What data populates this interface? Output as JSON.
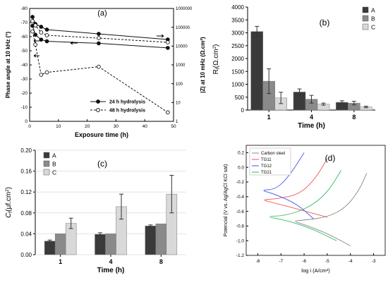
{
  "chart_data": [
    {
      "panel": "(a)",
      "type": "line",
      "xlabel": "Exposure time (h)",
      "ylabel_left": "Phase angle at 10 kHz (°)",
      "ylabel_right": "|Z| at 10 mHz (Ω.cm²)",
      "xlim": [
        0,
        50
      ],
      "ylim_left": [
        -80,
        0
      ],
      "ylim_right": [
        1,
        1000000
      ],
      "yscale_right": "log",
      "x_ticks": [
        "0",
        "10",
        "20",
        "30",
        "40",
        "50"
      ],
      "y_left_ticks": [
        "-80",
        "-70",
        "-60",
        "-50",
        "-40",
        "-30",
        "-20",
        "-10",
        "0"
      ],
      "y_right_ticks": [
        "1",
        "10",
        "100",
        "1000",
        "10000",
        "100000",
        "1000000"
      ],
      "legend_position": "bottom-right",
      "series": [
        {
          "name": "24 h hydrolysis",
          "axis": "left",
          "style": "solid",
          "marker": "filled-circle",
          "x": [
            1,
            2,
            4,
            6,
            24,
            48
          ],
          "y": [
            -74,
            -69,
            -67,
            -65,
            -62,
            -58
          ]
        },
        {
          "name": "24 h hydrolysis",
          "axis": "right",
          "style": "solid",
          "marker": "filled-circle",
          "x": [
            1,
            2,
            4,
            6,
            24,
            48
          ],
          "y": [
            120000,
            40000,
            22000,
            18000,
            14000,
            8000
          ]
        },
        {
          "name": "48 h hydrolysis",
          "axis": "left",
          "style": "dashed",
          "marker": "open-circle",
          "x": [
            1,
            2,
            4,
            6,
            24,
            48
          ],
          "y": [
            -71,
            -68,
            -63,
            -61,
            -59,
            -56
          ]
        },
        {
          "name": "48 h hydrolysis",
          "axis": "right",
          "style": "dashed",
          "marker": "open-circle",
          "x": [
            1,
            2,
            4,
            6,
            24,
            48
          ],
          "y": [
            60000,
            12000,
            300,
            400,
            800,
            3
          ]
        }
      ]
    },
    {
      "panel": "(b)",
      "type": "bar",
      "ylabel": "R_f (Ω.cm²)",
      "xlabel": "Time (h)",
      "categories": [
        "1",
        "4",
        "8"
      ],
      "ylim": [
        0,
        4000
      ],
      "y_ticks": [
        "0",
        "500",
        "1000",
        "1500",
        "2000",
        "2500",
        "3000",
        "3500",
        "4000"
      ],
      "legend_position": "top-right",
      "series": [
        {
          "name": "A",
          "color": "#3a3a3a",
          "values": [
            3050,
            700,
            300
          ],
          "errors": [
            200,
            120,
            60
          ]
        },
        {
          "name": "B",
          "color": "#8a8a8a",
          "values": [
            1120,
            420,
            270
          ],
          "errors": [
            480,
            150,
            70
          ]
        },
        {
          "name": "C",
          "color": "#d9d9d9",
          "values": [
            470,
            230,
            120
          ],
          "errors": [
            220,
            40,
            30
          ]
        }
      ]
    },
    {
      "panel": "(c)",
      "type": "bar",
      "ylabel": "C_f (μf.cm²)",
      "xlabel": "Time (h)",
      "categories": [
        "1",
        "4",
        "8"
      ],
      "ylim": [
        0,
        0.2
      ],
      "y_ticks": [
        "0.00",
        "0.04",
        "0.08",
        "0.12",
        "0.16",
        "0.20"
      ],
      "legend_position": "top-left",
      "series": [
        {
          "name": "A",
          "color": "#3a3a3a",
          "values": [
            0.026,
            0.039,
            0.055
          ],
          "errors": [
            0.002,
            0.003,
            0.002
          ]
        },
        {
          "name": "B",
          "color": "#8a8a8a",
          "values": [
            0.04,
            0.04,
            0.059
          ],
          "errors": [
            0,
            0,
            0
          ]
        },
        {
          "name": "C",
          "color": "#d9d9d9",
          "values": [
            0.06,
            0.092,
            0.116
          ],
          "errors": [
            0.01,
            0.024,
            0.036
          ]
        }
      ]
    },
    {
      "panel": "(d)",
      "type": "line",
      "xlabel": "log i (A/cm²)",
      "ylabel": "Potencial (V vs. Ag/AgCl KCl sat)",
      "xlim": [
        -8.5,
        -2.5
      ],
      "ylim": [
        -1.2,
        0.3
      ],
      "x_ticks": [
        "-8",
        "-7",
        "-6",
        "-5",
        "-4",
        "-3"
      ],
      "y_ticks": [
        "0.2",
        "0.0",
        "-0.2",
        "-0.4",
        "-0.6",
        "-0.8",
        "-1.0",
        "-1.2"
      ],
      "legend_position": "top-left",
      "series": [
        {
          "name": "Carbon steel",
          "color": "#888888",
          "x": [
            -4.0,
            -5.0,
            -6.0,
            -6.5,
            -6.0,
            -5.0,
            -4.2,
            -3.6,
            -3.3
          ],
          "y": [
            -1.07,
            -0.9,
            -0.78,
            -0.73,
            -0.72,
            -0.68,
            -0.55,
            -0.3,
            -0.08
          ]
        },
        {
          "name": "TG11",
          "color": "#ee5555",
          "x": [
            -5.0,
            -6.5,
            -7.5,
            -7.8,
            -7.2,
            -6.2,
            -5.5,
            -5.0
          ],
          "y": [
            -0.68,
            -0.55,
            -0.47,
            -0.44,
            -0.43,
            -0.37,
            -0.15,
            0.12
          ]
        },
        {
          "name": "TG12",
          "color": "#4455ee",
          "x": [
            -5.6,
            -6.3,
            -7.3,
            -7.9,
            -7.2,
            -6.6,
            -6.0
          ],
          "y": [
            -0.7,
            -0.5,
            -0.36,
            -0.31,
            -0.3,
            -0.1,
            0.2
          ]
        },
        {
          "name": "TG21",
          "color": "#33bb66",
          "x": [
            -4.6,
            -5.7,
            -6.8,
            -7.7,
            -6.8,
            -5.8,
            -5.0,
            -4.4
          ],
          "y": [
            -1.0,
            -0.83,
            -0.72,
            -0.67,
            -0.66,
            -0.55,
            -0.35,
            -0.04
          ]
        }
      ]
    }
  ]
}
